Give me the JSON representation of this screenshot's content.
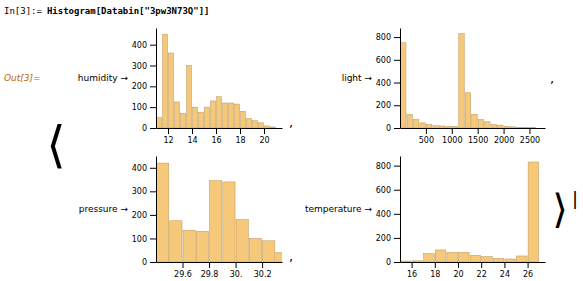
{
  "title": "Histogram[Databin[\"3pw3N73Q\"]]",
  "annotations": [
    "In[3]:= ",
    "Out[3]=",
    "⟨",
    "⟩",
    "|",
    ",",
    ",",
    ","
  ],
  "chart_data": [
    {
      "type": "histogram",
      "title": "humidity →",
      "color": "#F5C87A",
      "bins": [
        11,
        11.5,
        12,
        12.5,
        13,
        13.5,
        14,
        14.5,
        15,
        15.5,
        16,
        16.5,
        17,
        17.5,
        18,
        18.5,
        19,
        19.5,
        20,
        20.5,
        21
      ],
      "values": [
        50,
        450,
        360,
        125,
        70,
        300,
        100,
        75,
        100,
        130,
        150,
        120,
        120,
        115,
        80,
        45,
        35,
        25,
        10,
        5
      ],
      "xlim": [
        11,
        21.5
      ],
      "xticks": [
        12,
        14,
        16,
        18,
        20
      ],
      "ylim": [
        0,
        480
      ],
      "yticks": [
        0,
        100,
        200,
        300,
        400
      ]
    },
    {
      "type": "histogram",
      "title": "light →",
      "color": "#F5C87A",
      "bins": [
        0,
        125,
        250,
        375,
        500,
        625,
        750,
        875,
        1000,
        1125,
        1250,
        1375,
        1500,
        1625,
        1750,
        1875,
        2000,
        2125,
        2250,
        2375,
        2500,
        2625
      ],
      "values": [
        750,
        120,
        75,
        45,
        30,
        20,
        18,
        15,
        12,
        830,
        310,
        120,
        75,
        55,
        30,
        25,
        15,
        10,
        5,
        4,
        3
      ],
      "xlim": [
        0,
        2800
      ],
      "xticks": [
        500,
        1000,
        1500,
        2000,
        2500
      ],
      "ylim": [
        0,
        880
      ],
      "yticks": [
        0,
        200,
        400,
        600,
        800
      ]
    },
    {
      "type": "histogram",
      "title": "pressure →",
      "color": "#F5C87A",
      "bins": [
        29.4,
        29.5,
        29.6,
        29.7,
        29.8,
        29.9,
        30.0,
        30.1,
        30.2,
        30.3,
        30.4
      ],
      "values": [
        420,
        175,
        135,
        130,
        345,
        340,
        180,
        100,
        90,
        40
      ],
      "xlim": [
        29.4,
        30.35
      ],
      "xticks": [
        29.6,
        29.8,
        {
          "value": 30.0,
          "label": "30."
        },
        30.2
      ],
      "ylim": [
        0,
        450
      ],
      "yticks": [
        0,
        100,
        200,
        300,
        400
      ]
    },
    {
      "type": "histogram",
      "title": "temperature →",
      "color": "#F5C87A",
      "bins": [
        15,
        16,
        17,
        18,
        19,
        20,
        21,
        22,
        23,
        24,
        25,
        26,
        27,
        28
      ],
      "values": [
        8,
        10,
        70,
        100,
        80,
        80,
        55,
        45,
        30,
        25,
        50,
        830,
        0
      ],
      "xlim": [
        15,
        27.5
      ],
      "xticks": [
        16,
        18,
        20,
        22,
        24,
        26
      ],
      "ylim": [
        0,
        880
      ],
      "yticks": [
        0,
        200,
        400,
        600,
        800
      ]
    }
  ]
}
